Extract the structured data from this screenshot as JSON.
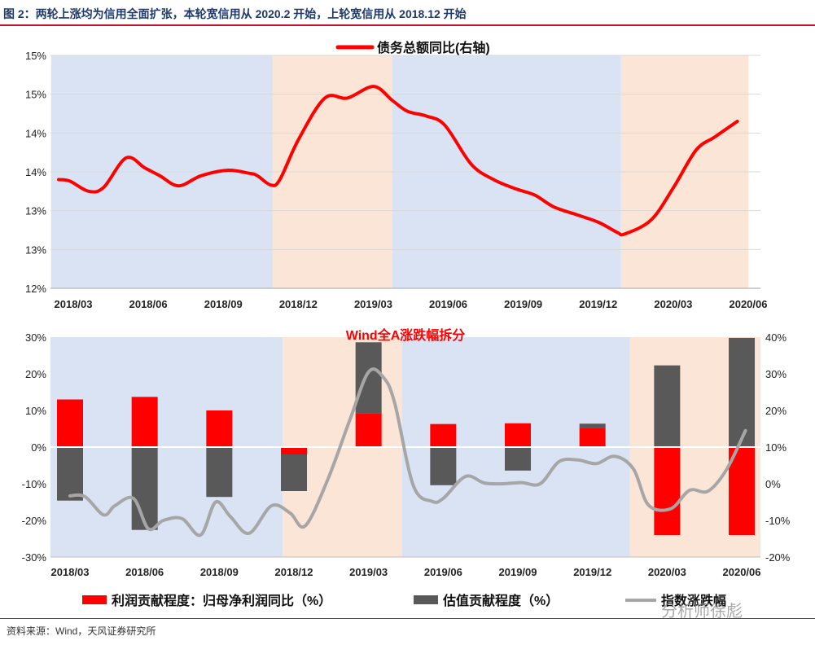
{
  "figure": {
    "title": "图 2：两轮上涨均为信用全面扩张，本轮宽信用从 2020.2 开始，上轮宽信用从 2018.12 开始",
    "source": "资料来源：Wind，天风证券研究所",
    "watermark": "分析师徐彪"
  },
  "colors": {
    "red": "#ff0000",
    "dark_gray": "#595959",
    "light_gray": "#a6a6a6",
    "blue_band": "#dae3f3",
    "peach_band": "#fbe5d6",
    "accent": "#c8102e"
  },
  "chart_data": [
    {
      "type": "line",
      "title": "",
      "legend": [
        "债务总额同比(右轴)"
      ],
      "x_ticks": [
        "2018/03",
        "2018/06",
        "2018/09",
        "2018/12",
        "2019/03",
        "2019/06",
        "2019/09",
        "2019/12",
        "2020/03",
        "2020/06"
      ],
      "y_ticks": [
        "12%",
        "13%",
        "13%",
        "14%",
        "14%",
        "15%",
        "15%"
      ],
      "ylim": [
        12.0,
        15.0
      ],
      "bands": [
        {
          "from": -0.1,
          "to": 2.85,
          "tone": "blue"
        },
        {
          "from": 2.85,
          "to": 4.45,
          "tone": "peach"
        },
        {
          "from": 4.45,
          "to": 7.5,
          "tone": "blue"
        },
        {
          "from": 7.5,
          "to": 9.2,
          "tone": "peach"
        }
      ],
      "series": [
        {
          "name": "债务总额同比(右轴)",
          "x": [
            0,
            0.15,
            0.4,
            0.6,
            0.9,
            1.15,
            1.35,
            1.6,
            1.9,
            2.25,
            2.55,
            2.65,
            2.83,
            2.95,
            3.2,
            3.55,
            3.85,
            4.2,
            4.45,
            4.65,
            4.9,
            5.15,
            5.5,
            5.8,
            6.1,
            6.35,
            6.6,
            6.9,
            7.2,
            7.45,
            7.55,
            7.9,
            8.2,
            8.5,
            8.75,
            9.05
          ],
          "values": [
            13.4,
            13.38,
            13.25,
            13.3,
            13.68,
            13.55,
            13.45,
            13.32,
            13.45,
            13.52,
            13.48,
            13.45,
            13.33,
            13.4,
            13.92,
            14.45,
            14.45,
            14.6,
            14.42,
            14.28,
            14.22,
            14.1,
            13.6,
            13.4,
            13.28,
            13.2,
            13.05,
            12.95,
            12.85,
            12.72,
            12.7,
            12.88,
            13.3,
            13.78,
            13.95,
            14.15
          ]
        }
      ]
    },
    {
      "type": "bar",
      "title": "Wind全A涨跌幅拆分",
      "categories": [
        "2018/03",
        "2018/06",
        "2018/09",
        "2018/12",
        "2019/03",
        "2019/06",
        "2019/09",
        "2019/12",
        "2020/03",
        "2020/06"
      ],
      "y_ticks_left": [
        "30%",
        "20%",
        "10%",
        "0%",
        "-10%",
        "-20%",
        "-30%"
      ],
      "y_ticks_right": [
        "40%",
        "30%",
        "20%",
        "10%",
        "0%",
        "-10%",
        "-20%"
      ],
      "ylim_left": [
        -30,
        30
      ],
      "ylim_right": [
        -20,
        40
      ],
      "bands": [
        {
          "from": -0.5,
          "to": 2.85,
          "tone": "blue"
        },
        {
          "from": 2.85,
          "to": 4.45,
          "tone": "peach"
        },
        {
          "from": 4.45,
          "to": 7.5,
          "tone": "blue"
        },
        {
          "from": 7.5,
          "to": 9.5,
          "tone": "peach"
        }
      ],
      "series": [
        {
          "name": "利润贡献程度：归母净利润同比（%）",
          "values": [
            13.0,
            13.7,
            10.0,
            -2.0,
            9.3,
            6.3,
            6.5,
            5.3,
            -24.0,
            -24.0
          ]
        },
        {
          "name": "估值贡献程度（%）",
          "values": [
            -14.6,
            -22.6,
            -13.6,
            -10.0,
            19.3,
            -10.4,
            -6.4,
            1.1,
            22.3,
            29.8
          ]
        },
        {
          "name": "指数涨跌幅",
          "axis": "right",
          "x": [
            0,
            0.2,
            0.45,
            0.6,
            0.85,
            1.05,
            1.25,
            1.5,
            1.75,
            1.95,
            2.15,
            2.4,
            2.7,
            2.95,
            3.15,
            3.45,
            3.75,
            4.0,
            4.2,
            4.35,
            4.6,
            4.85,
            5.0,
            5.3,
            5.55,
            5.8,
            6.05,
            6.3,
            6.55,
            6.8,
            7.05,
            7.3,
            7.55,
            7.75,
            8.05,
            8.3,
            8.55,
            8.8,
            9.05
          ],
          "values": [
            -3.3,
            -3.5,
            -8.5,
            -6.0,
            -4.0,
            -12.3,
            -10.0,
            -9.5,
            -14.0,
            -5.0,
            -9.0,
            -13.5,
            -6.0,
            -8.0,
            -11.5,
            1.0,
            17.5,
            30.5,
            29.0,
            22.0,
            -0.5,
            -4.8,
            -4.0,
            2.0,
            0.2,
            0.0,
            0.3,
            0.0,
            6.0,
            6.5,
            5.5,
            7.5,
            4.0,
            -5.8,
            -6.8,
            -1.8,
            -2.0,
            4.0,
            14.5
          ]
        }
      ],
      "legend": [
        "利润贡献程度：归母净利润同比（%）",
        "估值贡献程度（%）",
        "指数涨跌幅"
      ]
    }
  ]
}
